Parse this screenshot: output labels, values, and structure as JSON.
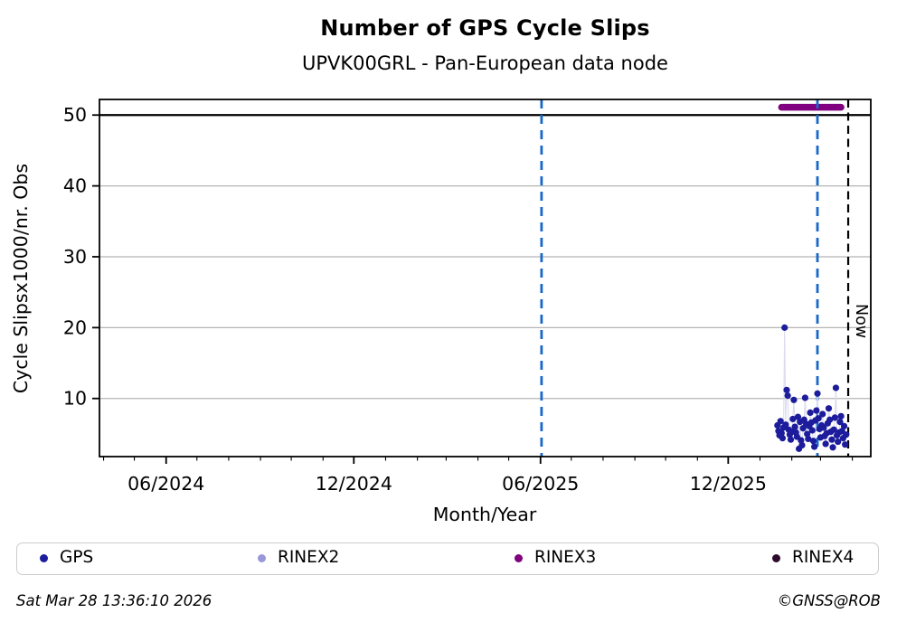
{
  "chart_data": {
    "type": "scatter",
    "title": "Number of GPS Cycle Slips",
    "subtitle": "UPVK00GRL - Pan-European data node",
    "xlabel": "Month/Year",
    "ylabel": "Cycle Slipsx1000/nr. Obs",
    "x_range": [
      "2024-03-28",
      "2026-04-19"
    ],
    "y_range": [
      1.8,
      52.2
    ],
    "grid": true,
    "x_major_ticks": [
      {
        "date": "2024-06-01",
        "label": "06/2024"
      },
      {
        "date": "2024-12-01",
        "label": "12/2024"
      },
      {
        "date": "2025-06-01",
        "label": "06/2025"
      },
      {
        "date": "2025-12-01",
        "label": "12/2025"
      }
    ],
    "y_ticks": [
      10,
      20,
      30,
      40,
      50
    ],
    "top_line_value": 50,
    "now_line": {
      "date": "2026-03-28",
      "label": "Now",
      "color": "#000000"
    },
    "event_lines": [
      {
        "date": "2025-06-02",
        "color": "#1868c8"
      },
      {
        "date": "2026-02-26",
        "color": "#1868c8"
      }
    ],
    "rinex3_bar": {
      "start": "2026-01-22",
      "end": "2026-03-21",
      "value": 51.1,
      "color": "#800080"
    },
    "series": [
      {
        "name": "GPS",
        "color": "#1c1c9c",
        "stem_color": "#dcdcf0",
        "points": [
          {
            "date": "2026-01-18",
            "value": 6.2
          },
          {
            "date": "2026-01-19",
            "value": 5.4
          },
          {
            "date": "2026-01-20",
            "value": 4.8
          },
          {
            "date": "2026-01-21",
            "value": 6.8
          },
          {
            "date": "2026-01-22",
            "value": 5.1
          },
          {
            "date": "2026-01-23",
            "value": 4.4
          },
          {
            "date": "2026-01-24",
            "value": 5.9
          },
          {
            "date": "2026-01-25",
            "value": 20.0
          },
          {
            "date": "2026-01-26",
            "value": 6.3
          },
          {
            "date": "2026-01-27",
            "value": 11.2
          },
          {
            "date": "2026-01-28",
            "value": 10.4
          },
          {
            "date": "2026-01-29",
            "value": 5.6
          },
          {
            "date": "2026-01-30",
            "value": 4.9
          },
          {
            "date": "2026-01-31",
            "value": 4.2
          },
          {
            "date": "2026-02-01",
            "value": 5.3
          },
          {
            "date": "2026-02-02",
            "value": 7.1
          },
          {
            "date": "2026-02-03",
            "value": 9.8
          },
          {
            "date": "2026-02-04",
            "value": 6.0
          },
          {
            "date": "2026-02-05",
            "value": 5.2
          },
          {
            "date": "2026-02-06",
            "value": 4.6
          },
          {
            "date": "2026-02-07",
            "value": 7.4
          },
          {
            "date": "2026-02-08",
            "value": 2.9
          },
          {
            "date": "2026-02-09",
            "value": 6.7
          },
          {
            "date": "2026-02-10",
            "value": 4.1
          },
          {
            "date": "2026-02-11",
            "value": 3.4
          },
          {
            "date": "2026-02-12",
            "value": 5.8
          },
          {
            "date": "2026-02-13",
            "value": 7.0
          },
          {
            "date": "2026-02-14",
            "value": 10.1
          },
          {
            "date": "2026-02-15",
            "value": 6.4
          },
          {
            "date": "2026-02-16",
            "value": 5.0
          },
          {
            "date": "2026-02-17",
            "value": 4.3
          },
          {
            "date": "2026-02-18",
            "value": 6.1
          },
          {
            "date": "2026-02-19",
            "value": 8.0
          },
          {
            "date": "2026-02-20",
            "value": 6.6
          },
          {
            "date": "2026-02-21",
            "value": 5.5
          },
          {
            "date": "2026-02-22",
            "value": 4.0
          },
          {
            "date": "2026-02-23",
            "value": 3.2
          },
          {
            "date": "2026-02-24",
            "value": 6.9
          },
          {
            "date": "2026-02-25",
            "value": 8.3
          },
          {
            "date": "2026-02-26",
            "value": 10.7
          },
          {
            "date": "2026-02-27",
            "value": 7.2
          },
          {
            "date": "2026-02-28",
            "value": 5.7
          },
          {
            "date": "2026-03-01",
            "value": 4.5
          },
          {
            "date": "2026-03-02",
            "value": 6.2
          },
          {
            "date": "2026-03-03",
            "value": 7.8
          },
          {
            "date": "2026-03-04",
            "value": 5.9
          },
          {
            "date": "2026-03-05",
            "value": 4.7
          },
          {
            "date": "2026-03-06",
            "value": 3.6
          },
          {
            "date": "2026-03-07",
            "value": 5.1
          },
          {
            "date": "2026-03-08",
            "value": 6.5
          },
          {
            "date": "2026-03-09",
            "value": 8.6
          },
          {
            "date": "2026-03-10",
            "value": 7.0
          },
          {
            "date": "2026-03-11",
            "value": 5.3
          },
          {
            "date": "2026-03-12",
            "value": 4.2
          },
          {
            "date": "2026-03-13",
            "value": 3.1
          },
          {
            "date": "2026-03-14",
            "value": 5.6
          },
          {
            "date": "2026-03-15",
            "value": 7.3
          },
          {
            "date": "2026-03-16",
            "value": 11.5
          },
          {
            "date": "2026-03-17",
            "value": 4.8
          },
          {
            "date": "2026-03-18",
            "value": 3.9
          },
          {
            "date": "2026-03-19",
            "value": 5.2
          },
          {
            "date": "2026-03-20",
            "value": 6.7
          },
          {
            "date": "2026-03-21",
            "value": 7.5
          },
          {
            "date": "2026-03-22",
            "value": 5.4
          },
          {
            "date": "2026-03-23",
            "value": 4.4
          },
          {
            "date": "2026-03-24",
            "value": 6.1
          },
          {
            "date": "2026-03-25",
            "value": 3.5
          },
          {
            "date": "2026-03-26",
            "value": 4.9
          }
        ]
      }
    ]
  },
  "legend": {
    "items": [
      {
        "label": "GPS",
        "color": "#1c1c9c"
      },
      {
        "label": "RINEX2",
        "color": "#9898d9"
      },
      {
        "label": "RINEX3",
        "color": "#800080"
      },
      {
        "label": "RINEX4",
        "color": "#2e0a2c"
      }
    ]
  },
  "footer": {
    "timestamp": "Sat Mar 28 13:36:10 2026",
    "credit": "©GNSS@ROB"
  }
}
